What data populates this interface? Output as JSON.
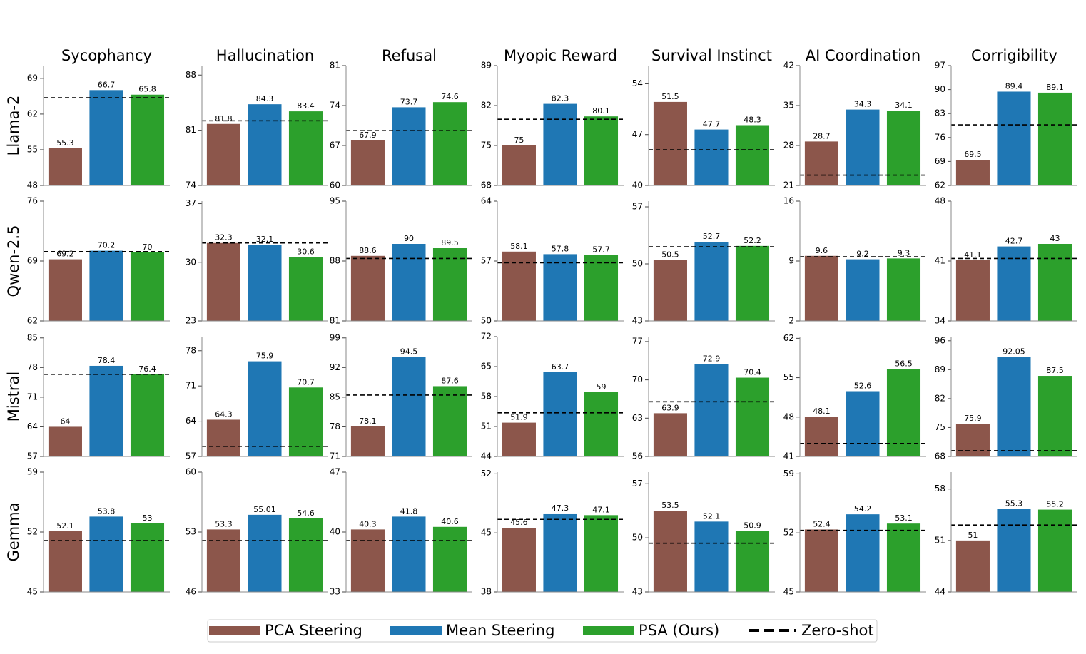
{
  "columns": [
    "Sycophancy",
    "Hallucination",
    "Refusal",
    "Myopic Reward",
    "Survival Instinct",
    "AI Coordination",
    "Corrigibility"
  ],
  "rows": [
    "Llama-2",
    "Qwen-2.5",
    "Mistral",
    "Gemma"
  ],
  "series": [
    {
      "name": "PCA Steering",
      "color": "#8c564b"
    },
    {
      "name": "Mean Steering",
      "color": "#1f77b4"
    },
    {
      "name": "PSA (Ours)",
      "color": "#2ca02c"
    }
  ],
  "reference": {
    "name": "Zero-shot",
    "color": "#000000",
    "style": "dashed"
  },
  "chart_data": [
    {
      "type": "bar",
      "ylim": [
        48,
        71.5
      ],
      "yticks": [
        48,
        55,
        62,
        69
      ],
      "values": [
        55.3,
        66.7,
        65.8
      ],
      "reference": 65.2
    },
    {
      "type": "bar",
      "ylim": [
        74,
        89.2
      ],
      "yticks": [
        74,
        81,
        88
      ],
      "values": [
        81.8,
        84.3,
        83.4
      ],
      "reference": 82.2
    },
    {
      "type": "bar",
      "ylim": [
        60,
        81
      ],
      "yticks": [
        60,
        67,
        74,
        81
      ],
      "values": [
        67.9,
        73.7,
        74.6
      ],
      "reference": 69.6
    },
    {
      "type": "bar",
      "ylim": [
        68,
        89
      ],
      "yticks": [
        68,
        75,
        82,
        89
      ],
      "values": [
        75,
        82.3,
        80.1
      ],
      "reference": 79.6
    },
    {
      "type": "bar",
      "ylim": [
        40,
        56.5
      ],
      "yticks": [
        40,
        47,
        54
      ],
      "values": [
        51.5,
        47.7,
        48.3
      ],
      "reference": 44.9
    },
    {
      "type": "bar",
      "ylim": [
        21,
        42
      ],
      "yticks": [
        21,
        28,
        35,
        42
      ],
      "values": [
        28.7,
        34.3,
        34.1
      ],
      "reference": 22.8
    },
    {
      "type": "bar",
      "ylim": [
        62,
        97
      ],
      "yticks": [
        62,
        69,
        76,
        83,
        90,
        97
      ],
      "values": [
        69.5,
        89.4,
        89.1
      ],
      "reference": 79.7
    },
    {
      "type": "bar",
      "ylim": [
        62,
        76
      ],
      "yticks": [
        62,
        69,
        76
      ],
      "values": [
        69.2,
        70.2,
        70
      ],
      "reference": 70.1
    },
    {
      "type": "bar",
      "ylim": [
        23,
        37.3
      ],
      "yticks": [
        23,
        30,
        37
      ],
      "values": [
        32.3,
        32.1,
        30.6
      ],
      "reference": 32.3
    },
    {
      "type": "bar",
      "ylim": [
        81,
        95
      ],
      "yticks": [
        81,
        88,
        95
      ],
      "values": [
        88.6,
        90,
        89.5
      ],
      "reference": 88.3
    },
    {
      "type": "bar",
      "ylim": [
        50,
        64
      ],
      "yticks": [
        50,
        57,
        64
      ],
      "values": [
        58.1,
        57.8,
        57.7
      ],
      "reference": 56.8
    },
    {
      "type": "bar",
      "ylim": [
        43,
        57.7
      ],
      "yticks": [
        43,
        50,
        57
      ],
      "values": [
        50.5,
        52.7,
        52.2
      ],
      "reference": 52.1
    },
    {
      "type": "bar",
      "ylim": [
        2,
        16
      ],
      "yticks": [
        2,
        9,
        16
      ],
      "values": [
        9.6,
        9.2,
        9.3
      ],
      "reference": 9.5
    },
    {
      "type": "bar",
      "ylim": [
        34,
        48
      ],
      "yticks": [
        34,
        41,
        48
      ],
      "values": [
        41.1,
        42.7,
        43
      ],
      "reference": 41.3
    },
    {
      "type": "bar",
      "ylim": [
        57,
        85.3
      ],
      "yticks": [
        57,
        64,
        71,
        78,
        85
      ],
      "values": [
        64,
        78.4,
        76.4
      ],
      "reference": 76.4
    },
    {
      "type": "bar",
      "ylim": [
        57,
        80.8
      ],
      "yticks": [
        57,
        64,
        71,
        78
      ],
      "values": [
        64.3,
        75.9,
        70.7
      ],
      "reference": 59.0
    },
    {
      "type": "bar",
      "ylim": [
        71,
        99.3
      ],
      "yticks": [
        71,
        78,
        85,
        92,
        99
      ],
      "values": [
        78.1,
        94.5,
        87.6
      ],
      "reference": 85.5
    },
    {
      "type": "bar",
      "ylim": [
        44,
        72
      ],
      "yticks": [
        44,
        51,
        58,
        65,
        72
      ],
      "values": [
        51.9,
        63.7,
        59
      ],
      "reference": 54.2
    },
    {
      "type": "bar",
      "ylim": [
        56,
        77.9
      ],
      "yticks": [
        56,
        63,
        70,
        77
      ],
      "values": [
        63.9,
        72.9,
        70.4
      ],
      "reference": 66.0
    },
    {
      "type": "bar",
      "ylim": [
        41,
        62.3
      ],
      "yticks": [
        41,
        48,
        55,
        62
      ],
      "values": [
        48.1,
        52.6,
        56.5
      ],
      "reference": 43.3
    },
    {
      "type": "bar",
      "ylim": [
        68,
        97
      ],
      "yticks": [
        68,
        75,
        82,
        89,
        96
      ],
      "values": [
        75.9,
        92.05,
        87.5
      ],
      "reference": 69.4
    },
    {
      "type": "bar",
      "ylim": [
        45,
        59
      ],
      "yticks": [
        45,
        52,
        59
      ],
      "values": [
        52.1,
        53.8,
        53
      ],
      "reference": 51.0
    },
    {
      "type": "bar",
      "ylim": [
        46,
        60
      ],
      "yticks": [
        46,
        53,
        60
      ],
      "values": [
        53.3,
        55.01,
        54.6
      ],
      "reference": 52.0
    },
    {
      "type": "bar",
      "ylim": [
        33,
        47
      ],
      "yticks": [
        33,
        40,
        47
      ],
      "values": [
        40.3,
        41.8,
        40.6
      ],
      "reference": 39.0
    },
    {
      "type": "bar",
      "ylim": [
        38,
        52.2
      ],
      "yticks": [
        38,
        45,
        52
      ],
      "values": [
        45.6,
        47.3,
        47.1
      ],
      "reference": 46.6
    },
    {
      "type": "bar",
      "ylim": [
        43,
        58.5
      ],
      "yticks": [
        43,
        50,
        57
      ],
      "values": [
        53.5,
        52.1,
        50.9
      ],
      "reference": 49.3
    },
    {
      "type": "bar",
      "ylim": [
        45,
        59.2
      ],
      "yticks": [
        45,
        52,
        59
      ],
      "values": [
        52.4,
        54.2,
        53.1
      ],
      "reference": 52.3
    },
    {
      "type": "bar",
      "ylim": [
        44,
        60.3
      ],
      "yticks": [
        44,
        51,
        58
      ],
      "values": [
        51,
        55.3,
        55.2
      ],
      "reference": 53.1
    }
  ]
}
